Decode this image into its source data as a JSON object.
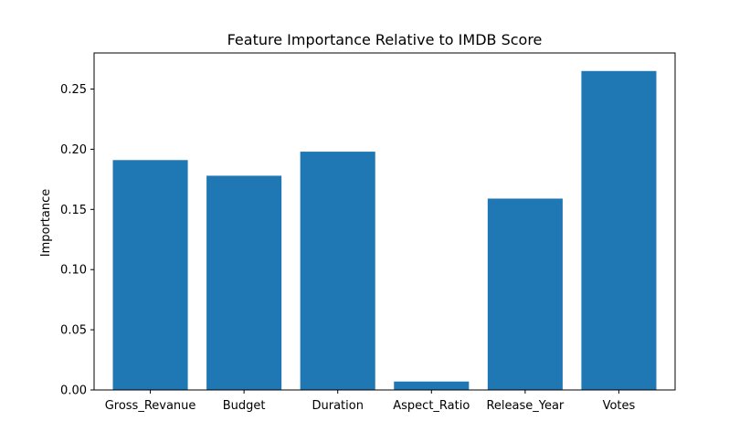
{
  "chart_data": {
    "type": "bar",
    "title": "Feature Importance Relative to IMDB Score",
    "xlabel": "",
    "ylabel": "Importance",
    "categories": [
      "Gross_Revanue",
      "Budget",
      "Duration",
      "Aspect_Ratio",
      "Release_Year",
      "Votes"
    ],
    "values": [
      0.191,
      0.178,
      0.198,
      0.007,
      0.159,
      0.265
    ],
    "ylim": [
      0,
      0.28
    ],
    "yticks": [
      "0.00",
      "0.05",
      "0.10",
      "0.15",
      "0.20",
      "0.25"
    ],
    "bar_color": "#1f77b4",
    "grid": false
  }
}
